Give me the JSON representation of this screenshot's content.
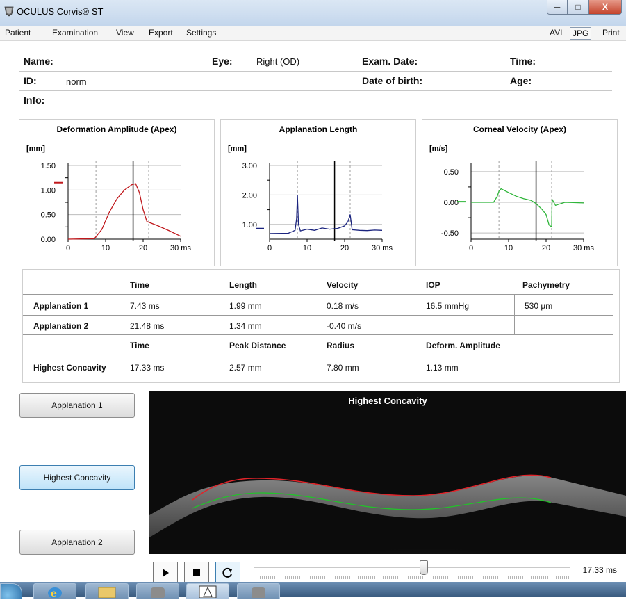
{
  "window": {
    "title": "OCULUS Corvis® ST",
    "min_glyph": "─",
    "max_glyph": "□",
    "close_glyph": "X"
  },
  "menu": {
    "items": [
      "Patient",
      "Examination",
      "View",
      "Export",
      "Settings"
    ],
    "right_buttons": [
      "AVI",
      "JPG",
      "Print"
    ]
  },
  "patient": {
    "name_label": "Name:",
    "eye_label": "Eye:",
    "eye_value": "Right (OD)",
    "exam_date_label": "Exam. Date:",
    "time_label": "Time:",
    "id_label": "ID:",
    "id_value": "norm",
    "dob_label": "Date of birth:",
    "age_label": "Age:",
    "info_label": "Info:"
  },
  "charts": [
    {
      "title": "Deformation Amplitude (Apex)",
      "unit": "[mm]",
      "yticks": [
        "1.50",
        "1.00",
        "0.50",
        "0.00"
      ],
      "xticks": [
        "0",
        "10",
        "20",
        "30 ms"
      ],
      "ylim": [
        0,
        1.5
      ],
      "color": "#c0181c",
      "series": [
        [
          0,
          0
        ],
        [
          7,
          0.01
        ],
        [
          9,
          0.2
        ],
        [
          11,
          0.55
        ],
        [
          13,
          0.82
        ],
        [
          15,
          1.0
        ],
        [
          17,
          1.11
        ],
        [
          18,
          1.13
        ],
        [
          19,
          0.95
        ],
        [
          20,
          0.6
        ],
        [
          21,
          0.36
        ],
        [
          24,
          0.27
        ],
        [
          27,
          0.17
        ],
        [
          30,
          0.06
        ]
      ],
      "marker": 1.15,
      "dash": [
        7.43,
        21.48
      ],
      "line": 17.33
    },
    {
      "title": "Applanation Length",
      "unit": "[mm]",
      "yticks": [
        "3.00",
        "2.00",
        "1.00"
      ],
      "xticks": [
        "0",
        "10",
        "20",
        "30 ms"
      ],
      "ylim": [
        0.5,
        3.0
      ],
      "color": "#1a237e",
      "series": [
        [
          0,
          0.69
        ],
        [
          5,
          0.7
        ],
        [
          6.8,
          0.8
        ],
        [
          7.2,
          1.2
        ],
        [
          7.43,
          1.99
        ],
        [
          7.7,
          1.0
        ],
        [
          8.2,
          0.78
        ],
        [
          10,
          0.84
        ],
        [
          12,
          0.8
        ],
        [
          14,
          0.88
        ],
        [
          16,
          0.84
        ],
        [
          18,
          0.86
        ],
        [
          20,
          0.95
        ],
        [
          20.9,
          1.1
        ],
        [
          21.48,
          1.34
        ],
        [
          22,
          0.82
        ],
        [
          24,
          0.8
        ],
        [
          26,
          0.79
        ],
        [
          28,
          0.81
        ],
        [
          30,
          0.8
        ]
      ],
      "marker": 0.86,
      "dash": [
        7.43,
        21.48
      ],
      "line": 17.33
    },
    {
      "title": "Corneal Velocity (Apex)",
      "unit": "[m/s]",
      "yticks": [
        "0.50",
        "0.00",
        "-0.50"
      ],
      "xticks": [
        "0",
        "10",
        "20",
        "30 ms"
      ],
      "ylim": [
        -0.6,
        0.6
      ],
      "color": "#2fb53a",
      "series": [
        [
          0,
          0
        ],
        [
          6,
          0.0
        ],
        [
          7,
          0.1
        ],
        [
          7.43,
          0.18
        ],
        [
          8,
          0.22
        ],
        [
          10,
          0.16
        ],
        [
          12,
          0.1
        ],
        [
          14,
          0.06
        ],
        [
          16,
          0.03
        ],
        [
          17.33,
          -0.02
        ],
        [
          18,
          -0.06
        ],
        [
          19,
          -0.12
        ],
        [
          20,
          -0.2
        ],
        [
          20.8,
          -0.37
        ],
        [
          21.48,
          -0.4
        ],
        [
          21.6,
          0.05
        ],
        [
          22.5,
          -0.05
        ],
        [
          25,
          0.0
        ],
        [
          30,
          -0.01
        ]
      ],
      "marker": 0.01,
      "dash": [
        7.43,
        21.48
      ],
      "line": 17.33
    }
  ],
  "table": {
    "header1": [
      "Time",
      "Length",
      "Velocity",
      "IOP",
      "Pachymetry"
    ],
    "rows1": [
      {
        "label": "Applanation 1",
        "values": [
          "7.43 ms",
          "1.99 mm",
          "0.18 m/s",
          "16.5 mmHg",
          "530 µm"
        ]
      },
      {
        "label": "Applanation 2",
        "values": [
          "21.48 ms",
          "1.34 mm",
          "-0.40 m/s",
          "",
          ""
        ]
      }
    ],
    "header2": [
      "Time",
      "Peak Distance",
      "Radius",
      "Deform. Amplitude"
    ],
    "row2": {
      "label": "Highest Concavity",
      "values": [
        "17.33 ms",
        "2.57 mm",
        "7.80 mm",
        "1.13 mm"
      ]
    }
  },
  "side_buttons": {
    "applanation1": "Applanation 1",
    "highest_concavity": "Highest Concavity",
    "applanation2": "Applanation 2"
  },
  "image": {
    "title": "Highest Concavity",
    "anterior_color": "#e0242a",
    "posterior_color": "#22c22a"
  },
  "playback": {
    "time": "17.33 ms"
  }
}
